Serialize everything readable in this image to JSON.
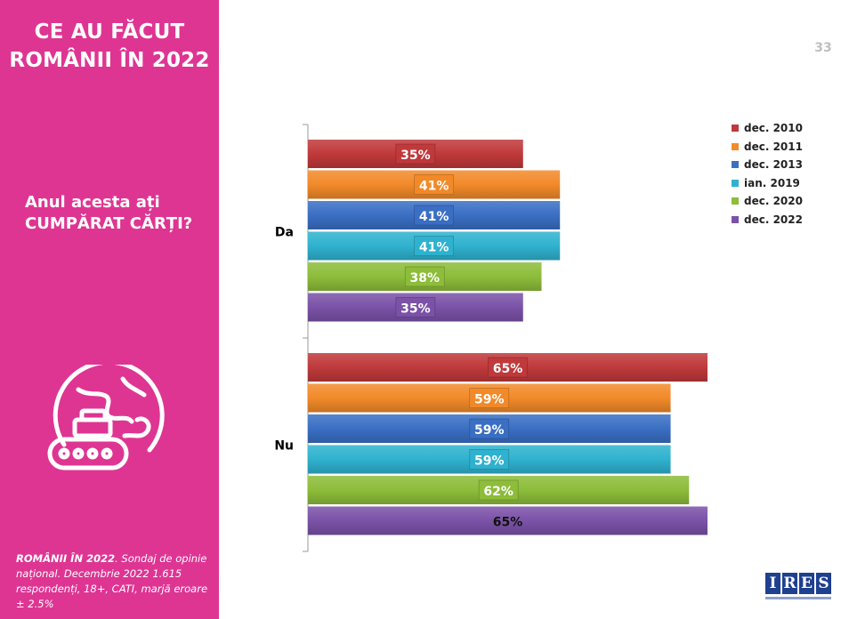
{
  "sidebar": {
    "title_line1": "CE AU FĂCUT",
    "title_line2": "ROMÂNII ÎN 2022",
    "question_line1": "Anul acesta ați",
    "question_line2": "CUMPĂRAT CĂRȚI?",
    "footer_bold": "ROMÂNII ÎN 2022",
    "footer_text": ". Sondaj de opinie național. Decembrie 2022 1.615 respondenți, 18+, CATI, marjă eroare ± 2.5%",
    "icon": "globe-book-icon"
  },
  "page_number": "33",
  "logo": {
    "letters": [
      "I",
      "R",
      "E",
      "S"
    ],
    "icon": "ires-logo"
  },
  "chart_data": {
    "type": "bar",
    "orientation": "horizontal",
    "categories": [
      "Da",
      "Nu"
    ],
    "series": [
      {
        "name": "dec. 2010",
        "color": "#c0393b",
        "values": [
          35,
          65
        ],
        "labels": [
          "35%",
          "65%"
        ]
      },
      {
        "name": "dec. 2011",
        "color": "#f28a2a",
        "values": [
          41,
          59
        ],
        "labels": [
          "41%",
          "59%"
        ]
      },
      {
        "name": "dec. 2013",
        "color": "#3a6fc4",
        "values": [
          41,
          59
        ],
        "labels": [
          "41%",
          "59%"
        ]
      },
      {
        "name": "ian. 2019",
        "color": "#2fb2cf",
        "values": [
          41,
          59
        ],
        "labels": [
          "41%",
          "59%"
        ]
      },
      {
        "name": "dec. 2020",
        "color": "#8dbd3a",
        "values": [
          38,
          62
        ],
        "labels": [
          "38%",
          "62%"
        ]
      },
      {
        "name": "dec. 2022",
        "color": "#7b52a8",
        "values": [
          35,
          65
        ],
        "labels": [
          "35%",
          "65%"
        ]
      }
    ],
    "xlim": [
      0,
      65
    ],
    "legend_position": "top-right",
    "grid": false
  }
}
